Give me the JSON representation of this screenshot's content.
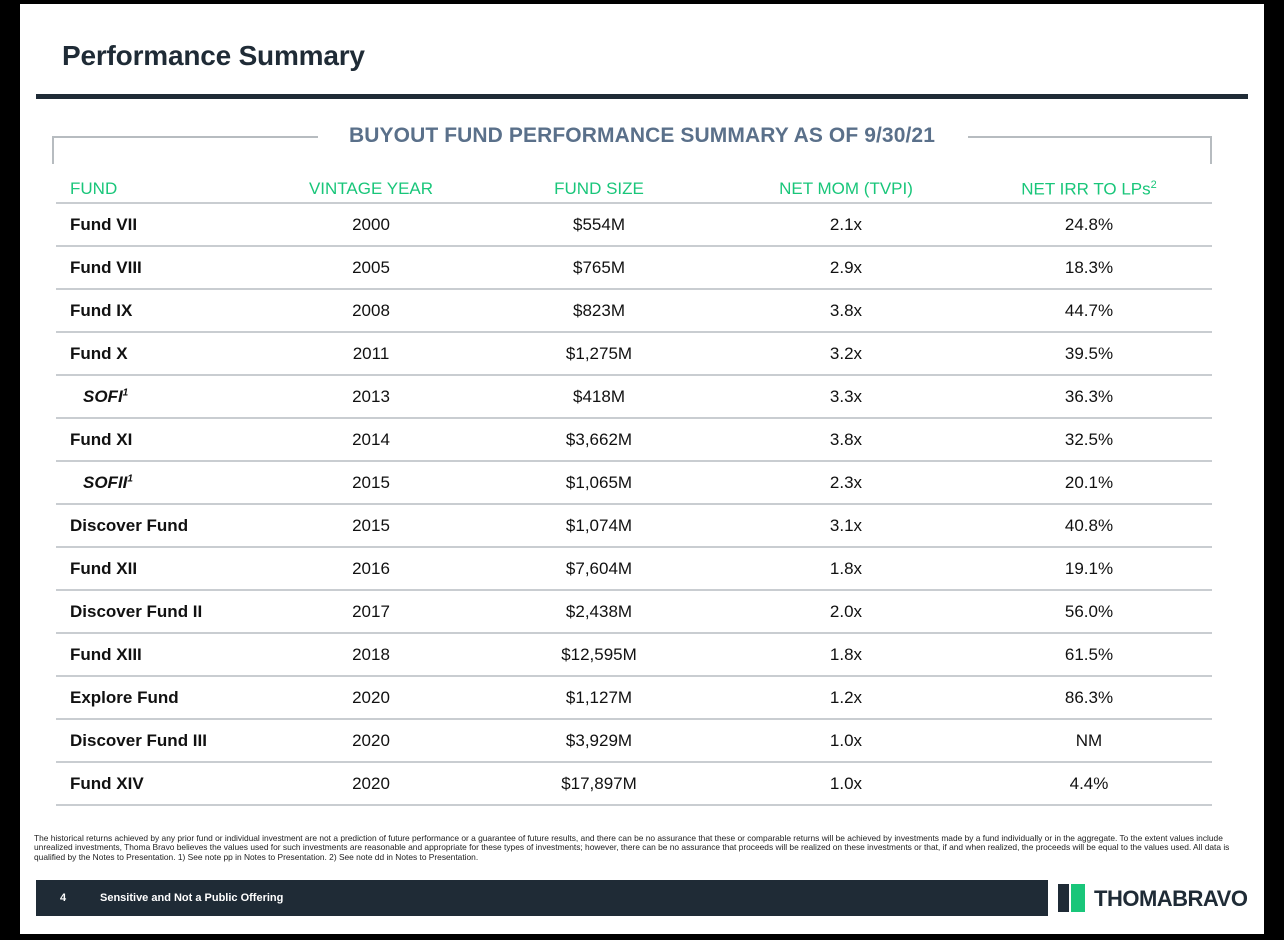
{
  "page": {
    "title": "Performance Summary",
    "table_title": "BUYOUT FUND PERFORMANCE SUMMARY AS OF 9/30/21"
  },
  "table": {
    "headers": {
      "fund": "FUND",
      "vintage_year": "VINTAGE YEAR",
      "fund_size": "FUND SIZE",
      "net_mom": "NET MOM (TVPI)",
      "net_irr": "NET IRR TO LPs",
      "net_irr_note": "2"
    },
    "rows": [
      {
        "fund": "Fund VII",
        "note": "",
        "sub": false,
        "vintage": "2000",
        "size": "$554M",
        "mom": "2.1x",
        "irr": "24.8%"
      },
      {
        "fund": "Fund VIII",
        "note": "",
        "sub": false,
        "vintage": "2005",
        "size": "$765M",
        "mom": "2.9x",
        "irr": "18.3%"
      },
      {
        "fund": "Fund IX",
        "note": "",
        "sub": false,
        "vintage": "2008",
        "size": "$823M",
        "mom": "3.8x",
        "irr": "44.7%"
      },
      {
        "fund": "Fund X",
        "note": "",
        "sub": false,
        "vintage": "2011",
        "size": "$1,275M",
        "mom": "3.2x",
        "irr": "39.5%"
      },
      {
        "fund": "SOFI",
        "note": "1",
        "sub": true,
        "vintage": "2013",
        "size": "$418M",
        "mom": "3.3x",
        "irr": "36.3%"
      },
      {
        "fund": "Fund XI",
        "note": "",
        "sub": false,
        "vintage": "2014",
        "size": "$3,662M",
        "mom": "3.8x",
        "irr": "32.5%"
      },
      {
        "fund": "SOFII",
        "note": "1",
        "sub": true,
        "vintage": "2015",
        "size": "$1,065M",
        "mom": "2.3x",
        "irr": "20.1%"
      },
      {
        "fund": "Discover Fund",
        "note": "",
        "sub": false,
        "vintage": "2015",
        "size": "$1,074M",
        "mom": "3.1x",
        "irr": "40.8%"
      },
      {
        "fund": "Fund XII",
        "note": "",
        "sub": false,
        "vintage": "2016",
        "size": "$7,604M",
        "mom": "1.8x",
        "irr": "19.1%"
      },
      {
        "fund": "Discover Fund II",
        "note": "",
        "sub": false,
        "vintage": "2017",
        "size": "$2,438M",
        "mom": "2.0x",
        "irr": "56.0%"
      },
      {
        "fund": "Fund XIII",
        "note": "",
        "sub": false,
        "vintage": "2018",
        "size": "$12,595M",
        "mom": "1.8x",
        "irr": "61.5%"
      },
      {
        "fund": "Explore Fund",
        "note": "",
        "sub": false,
        "vintage": "2020",
        "size": "$1,127M",
        "mom": "1.2x",
        "irr": "86.3%"
      },
      {
        "fund": "Discover Fund III",
        "note": "",
        "sub": false,
        "vintage": "2020",
        "size": "$3,929M",
        "mom": "1.0x",
        "irr": "NM"
      },
      {
        "fund": "Fund XIV",
        "note": "",
        "sub": false,
        "vintage": "2020",
        "size": "$17,897M",
        "mom": "1.0x",
        "irr": "4.4%"
      }
    ]
  },
  "disclaimer": "The historical returns achieved by any prior fund or individual investment are not a prediction of future performance or a guarantee of future results, and there can be no assurance that these or comparable returns will be achieved by investments made by a fund individually or in the aggregate. To the extent values include unrealized investments, Thoma Bravo believes the values used for such investments are reasonable and appropriate for these types of investments; however, there can be no assurance that proceeds will be realized on these investments or that, if and when realized, the proceeds will be equal to the values used. All data is qualified by the Notes to Presentation. 1) See note pp in Notes to Presentation. 2) See note dd in Notes to Presentation.",
  "footer": {
    "page_number": "4",
    "text": "Sensitive and Not a Public Offering",
    "logo_text": "THOMABRAVO"
  },
  "colors": {
    "navy": "#1f2b36",
    "accent_green": "#19c67a",
    "table_title_blue": "#5a708a"
  }
}
